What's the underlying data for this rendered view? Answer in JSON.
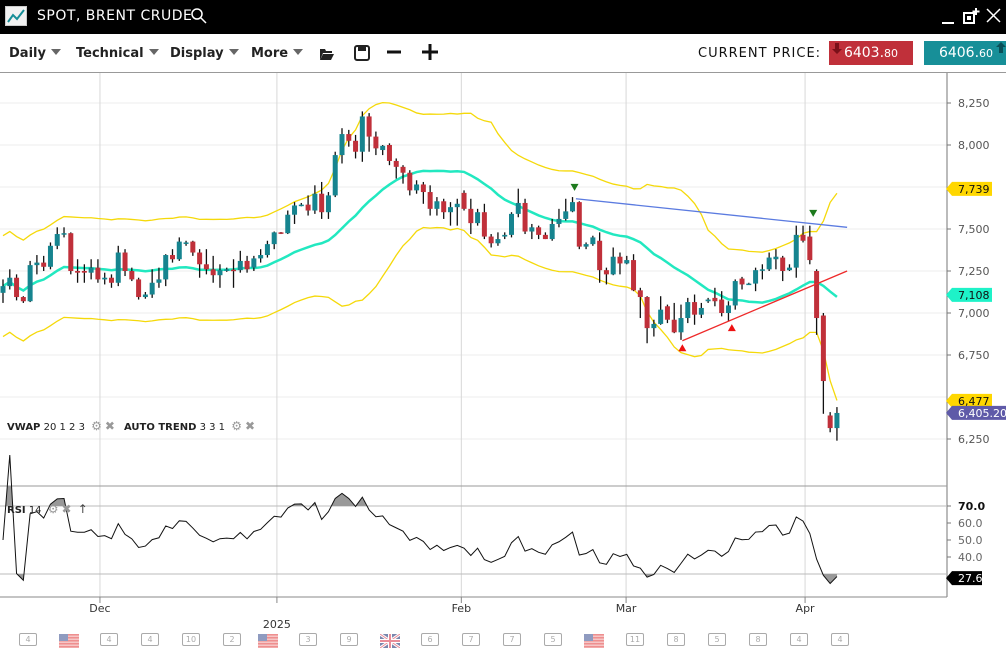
{
  "header": {
    "title": "SPOT, BRENT CRUDE",
    "logo_icon": "line-chart-icon",
    "search_icon": "search-icon"
  },
  "toolbar": {
    "menus": [
      {
        "label": "Daily"
      },
      {
        "label": "Technical"
      },
      {
        "label": "Display"
      },
      {
        "label": "More"
      }
    ],
    "icons": [
      "folder-open-icon",
      "save-icon",
      "zoom-out-icon",
      "zoom-in-icon"
    ],
    "current_price_label": "CURRENT PRICE:",
    "sell": {
      "main": "6403.",
      "decimals": "80",
      "color": "#c0303a"
    },
    "buy": {
      "main": "6406.",
      "decimals": "60",
      "color": "#178f98"
    }
  },
  "indicators": {
    "vwap": {
      "name": "VWAP",
      "params": "20 1 2 3"
    },
    "auto_trend": {
      "name": "AUTO TREND",
      "params": "3 3 1"
    },
    "rsi": {
      "name": "RSI",
      "params": "14"
    }
  },
  "chart_data": {
    "type": "candlestick",
    "colors": {
      "up": "#16848f",
      "down": "#c0303a",
      "bands": "#f5d90a",
      "middle": "#22e8c0",
      "resistance": "#5b7be0",
      "support": "#ee2a2a"
    },
    "y_ticks": [
      "8,250",
      "8,000",
      "7,500",
      "7,250",
      "7,000",
      "6,750",
      "6,250"
    ],
    "y_tick_values": [
      8250,
      8000,
      7500,
      7250,
      7000,
      6750,
      6250
    ],
    "x_ticks": [
      {
        "label": "Dec",
        "index": 14.3
      },
      {
        "label": "2025",
        "index": 40.4
      },
      {
        "label": "Feb",
        "index": 67.6
      },
      {
        "label": "Mar",
        "index": 91.9
      },
      {
        "label": "Apr",
        "index": 118.3
      }
    ],
    "value_tags": [
      {
        "label": "7,739",
        "value": 7739,
        "color": "#ffd700",
        "text_color": "#111"
      },
      {
        "label": "7,108",
        "value": 7108,
        "color": "#1ef2c8",
        "text_color": "#111"
      },
      {
        "label": "6,477",
        "value": 6477,
        "color": "#ffd700",
        "text_color": "#111"
      },
      {
        "label": "6,405.20",
        "value": 6405.2,
        "color": "#5f5aa8",
        "text_color": "#fff"
      }
    ],
    "ohlc": [
      [
        7120,
        7200,
        7060,
        7160
      ],
      [
        7160,
        7260,
        7140,
        7210
      ],
      [
        7210,
        7230,
        7075,
        7095
      ],
      [
        7095,
        7100,
        7060,
        7070
      ],
      [
        7070,
        7310,
        7065,
        7285
      ],
      [
        7285,
        7345,
        7230,
        7300
      ],
      [
        7300,
        7340,
        7250,
        7275
      ],
      [
        7275,
        7420,
        7260,
        7400
      ],
      [
        7400,
        7510,
        7380,
        7470
      ],
      [
        7470,
        7510,
        7450,
        7475
      ],
      [
        7475,
        7480,
        7230,
        7250
      ],
      [
        7250,
        7320,
        7180,
        7240
      ],
      [
        7250,
        7290,
        7180,
        7240
      ],
      [
        7240,
        7320,
        7200,
        7270
      ],
      [
        7270,
        7320,
        7180,
        7200
      ],
      [
        7200,
        7240,
        7170,
        7210
      ],
      [
        7210,
        7230,
        7150,
        7180
      ],
      [
        7180,
        7400,
        7160,
        7360
      ],
      [
        7360,
        7380,
        7220,
        7250
      ],
      [
        7250,
        7270,
        7190,
        7200
      ],
      [
        7200,
        7210,
        7080,
        7095
      ],
      [
        7095,
        7125,
        7085,
        7110
      ],
      [
        7110,
        7260,
        7090,
        7180
      ],
      [
        7180,
        7270,
        7150,
        7200
      ],
      [
        7200,
        7350,
        7160,
        7345
      ],
      [
        7345,
        7380,
        7300,
        7320
      ],
      [
        7320,
        7450,
        7310,
        7425
      ],
      [
        7415,
        7430,
        7400,
        7420
      ],
      [
        7425,
        7430,
        7340,
        7360
      ],
      [
        7360,
        7380,
        7210,
        7290
      ],
      [
        7290,
        7380,
        7230,
        7260
      ],
      [
        7260,
        7340,
        7180,
        7225
      ],
      [
        7225,
        7290,
        7150,
        7255
      ],
      [
        7255,
        7270,
        7245,
        7260
      ],
      [
        7258,
        7320,
        7150,
        7255
      ],
      [
        7255,
        7370,
        7240,
        7310
      ],
      [
        7310,
        7340,
        7240,
        7260
      ],
      [
        7270,
        7340,
        7250,
        7325
      ],
      [
        7325,
        7380,
        7300,
        7345
      ],
      [
        7345,
        7430,
        7330,
        7410
      ],
      [
        7410,
        7485,
        7380,
        7480
      ],
      [
        7480,
        7482,
        7470,
        7475
      ],
      [
        7475,
        7610,
        7470,
        7585
      ],
      [
        7585,
        7660,
        7530,
        7640
      ],
      [
        7640,
        7655,
        7635,
        7645
      ],
      [
        7645,
        7700,
        7580,
        7610
      ],
      [
        7610,
        7760,
        7590,
        7710
      ],
      [
        7710,
        7780,
        7560,
        7600
      ],
      [
        7600,
        7720,
        7560,
        7700
      ],
      [
        7700,
        7960,
        7690,
        7940
      ],
      [
        7940,
        8100,
        7890,
        8065
      ],
      [
        8065,
        8090,
        7990,
        8025
      ],
      [
        8025,
        8060,
        7920,
        7960
      ],
      [
        7960,
        8200,
        7900,
        8170
      ],
      [
        8170,
        8190,
        7960,
        8050
      ],
      [
        8050,
        8080,
        7940,
        7980
      ],
      [
        7970,
        8000,
        7940,
        7995
      ],
      [
        8000,
        8010,
        7880,
        7905
      ],
      [
        7905,
        7920,
        7800,
        7870
      ],
      [
        7870,
        7880,
        7770,
        7835
      ],
      [
        7835,
        7850,
        7700,
        7730
      ],
      [
        7730,
        7790,
        7710,
        7765
      ],
      [
        7765,
        7780,
        7650,
        7720
      ],
      [
        7720,
        7760,
        7580,
        7620
      ],
      [
        7620,
        7690,
        7580,
        7665
      ],
      [
        7665,
        7680,
        7560,
        7600
      ],
      [
        7600,
        7660,
        7520,
        7630
      ],
      [
        7630,
        7680,
        7520,
        7650
      ],
      [
        7715,
        7730,
        7610,
        7620
      ],
      [
        7620,
        7680,
        7470,
        7535
      ],
      [
        7535,
        7620,
        7520,
        7600
      ],
      [
        7600,
        7650,
        7440,
        7455
      ],
      [
        7455,
        7470,
        7390,
        7415
      ],
      [
        7415,
        7480,
        7400,
        7440
      ],
      [
        7455,
        7480,
        7440,
        7465
      ],
      [
        7465,
        7600,
        7450,
        7590
      ],
      [
        7590,
        7740,
        7570,
        7655
      ],
      [
        7655,
        7680,
        7470,
        7485
      ],
      [
        7485,
        7530,
        7440,
        7510
      ],
      [
        7510,
        7520,
        7440,
        7465
      ],
      [
        7465,
        7480,
        7440,
        7440
      ],
      [
        7440,
        7560,
        7430,
        7530
      ],
      [
        7530,
        7620,
        7510,
        7560
      ],
      [
        7560,
        7680,
        7550,
        7605
      ],
      [
        7605,
        7690,
        7600,
        7660
      ],
      [
        7660,
        7665,
        7380,
        7395
      ],
      [
        7395,
        7420,
        7380,
        7410
      ],
      [
        7410,
        7460,
        7400,
        7450
      ],
      [
        7430,
        7480,
        7180,
        7255
      ],
      [
        7255,
        7270,
        7170,
        7230
      ],
      [
        7230,
        7390,
        7225,
        7335
      ],
      [
        7335,
        7360,
        7230,
        7295
      ],
      [
        7295,
        7340,
        7290,
        7315
      ],
      [
        7315,
        7350,
        7130,
        7135
      ],
      [
        7135,
        7150,
        6970,
        7095
      ],
      [
        7095,
        7100,
        6820,
        6910
      ],
      [
        6910,
        6960,
        6860,
        6935
      ],
      [
        6935,
        7100,
        6930,
        7020
      ],
      [
        7040,
        7050,
        6940,
        6960
      ],
      [
        6960,
        7060,
        6880,
        6885
      ],
      [
        6885,
        7050,
        6840,
        6970
      ],
      [
        6970,
        7090,
        6940,
        7065
      ],
      [
        7065,
        7110,
        6930,
        6990
      ],
      [
        6990,
        7060,
        6970,
        7030
      ],
      [
        7070,
        7090,
        7060,
        7080
      ],
      [
        7090,
        7150,
        7040,
        7070
      ],
      [
        7080,
        7130,
        6980,
        7000
      ],
      [
        7000,
        7070,
        6950,
        7045
      ],
      [
        7045,
        7200,
        7020,
        7190
      ],
      [
        7205,
        7215,
        7140,
        7170
      ],
      [
        7175,
        7180,
        7170,
        7175
      ],
      [
        7175,
        7270,
        7130,
        7255
      ],
      [
        7255,
        7290,
        7200,
        7260
      ],
      [
        7260,
        7360,
        7250,
        7330
      ],
      [
        7320,
        7380,
        7260,
        7335
      ],
      [
        7330,
        7340,
        7190,
        7250
      ],
      [
        7255,
        7290,
        7250,
        7270
      ],
      [
        7270,
        7520,
        7210,
        7465
      ],
      [
        7465,
        7520,
        7420,
        7430
      ],
      [
        7455,
        7520,
        7290,
        7315
      ],
      [
        7250,
        7260,
        6870,
        6970
      ],
      [
        6985,
        7000,
        6400,
        6595
      ],
      [
        6390,
        6410,
        6290,
        6315
      ],
      [
        6315,
        6440,
        6240,
        6405
      ]
    ],
    "trend_lines": [
      {
        "kind": "resistance",
        "from": {
          "index": 84.5,
          "price": 7680
        },
        "to": {
          "index": 124.5,
          "price": 7510
        }
      },
      {
        "kind": "support",
        "from": {
          "index": 100.2,
          "price": 6835
        },
        "to": {
          "index": 124.5,
          "price": 7250
        }
      }
    ],
    "signals": [
      {
        "kind": "sell",
        "index": 84.3,
        "price": 7745
      },
      {
        "kind": "sell",
        "index": 119.5,
        "price": 7590
      },
      {
        "kind": "buy",
        "index": 100.2,
        "price": 6790
      },
      {
        "kind": "buy",
        "index": 107.5,
        "price": 6910
      }
    ],
    "rsi": {
      "y_ticks": [
        "70.0",
        "60.0",
        "50.0",
        "40.0"
      ],
      "y_tick_values": [
        70,
        60,
        50,
        40
      ],
      "overbought": 70,
      "oversold": 30,
      "last_label": "27.6"
    }
  },
  "events": [
    {
      "type": "calendar",
      "label": "4"
    },
    {
      "type": "flag-us",
      "label": ""
    },
    {
      "type": "calendar",
      "label": "4"
    },
    {
      "type": "calendar",
      "label": "4"
    },
    {
      "type": "calendar",
      "label": "10"
    },
    {
      "type": "calendar",
      "label": "2"
    },
    {
      "type": "flag-us",
      "label": ""
    },
    {
      "type": "calendar",
      "label": "3"
    },
    {
      "type": "calendar",
      "label": "9"
    },
    {
      "type": "flag-uk",
      "label": ""
    },
    {
      "type": "calendar",
      "label": "6"
    },
    {
      "type": "calendar",
      "label": "7"
    },
    {
      "type": "calendar",
      "label": "7"
    },
    {
      "type": "calendar",
      "label": "5"
    },
    {
      "type": "flag-us",
      "label": ""
    },
    {
      "type": "calendar",
      "label": "11"
    },
    {
      "type": "calendar",
      "label": "8"
    },
    {
      "type": "calendar",
      "label": "5"
    },
    {
      "type": "calendar",
      "label": "8"
    },
    {
      "type": "calendar",
      "label": "4"
    },
    {
      "type": "calendar",
      "label": "4"
    }
  ]
}
